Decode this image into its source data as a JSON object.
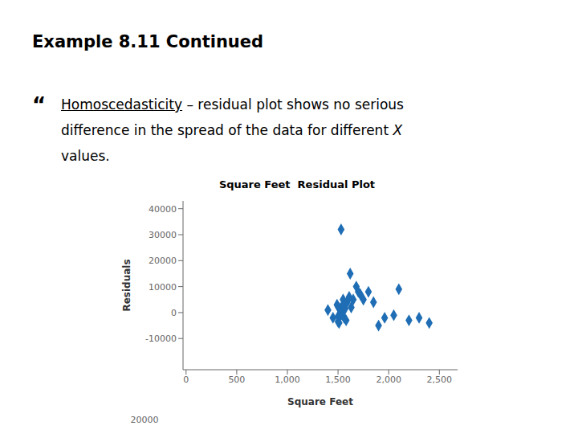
{
  "chart_data": {
    "type": "scatter",
    "title": "Square Feet  Residual Plot",
    "x_label": "Square Feet",
    "y_label": "Residuals",
    "annotations": [
      "Example 8.11 Continued",
      "“",
      "Homoscedasticity",
      " – residual plot shows no serious",
      "difference in the spread of the data for different ",
      "X",
      "values.",
      "20000"
    ],
    "x": [
      1400,
      1450,
      1490,
      1500,
      1505,
      1510,
      1515,
      1520,
      1525,
      1530,
      1540,
      1545,
      1550,
      1555,
      1560,
      1565,
      1570,
      1580,
      1590,
      1600,
      1610,
      1620,
      1630,
      1650,
      1680,
      1700,
      1720,
      1750,
      1800,
      1850,
      1900,
      1960,
      2050,
      2100,
      2200,
      2300,
      2400,
      1500
    ],
    "values": [
      1000,
      -2000,
      3000,
      -3500,
      2000,
      -4000,
      1500,
      -1500,
      500,
      32000,
      2500,
      -1000,
      5000,
      1000,
      -2000,
      3000,
      1500,
      -3000,
      4000,
      5000,
      6000,
      15000,
      2000,
      5000,
      10000,
      8000,
      7000,
      5000,
      8000,
      4000,
      -5000,
      -2000,
      -1000,
      9000,
      -3000,
      -2000,
      -4000,
      -1500
    ],
    "color": "#1F6EB5",
    "marker": "diamond",
    "xlim": [
      -30,
      2680
    ],
    "xticks": [
      0,
      500,
      {
        "value": 1000,
        "label": "1,000"
      },
      {
        "value": 1500,
        "label": "1,500"
      },
      {
        "value": 2000,
        "label": "2,000"
      },
      {
        "value": 2500,
        "label": "2,500"
      }
    ],
    "ylim": [
      -22000,
      43000
    ],
    "yticks": [
      -10000,
      0,
      10000,
      20000,
      30000,
      40000
    ],
    "grid": false
  }
}
